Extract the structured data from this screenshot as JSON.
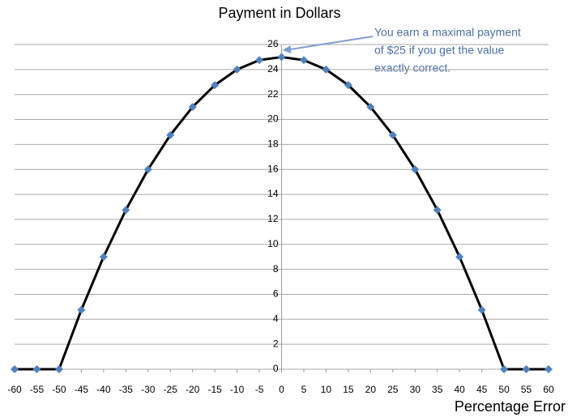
{
  "chart_data": {
    "type": "line",
    "title": "Payment in Dollars",
    "x_label": "Percentage Error",
    "annotation": [
      "You earn a maximal payment",
      "of $25 if you get the value",
      "exactly correct."
    ],
    "x": [
      -60,
      -55,
      -50,
      -45,
      -40,
      -35,
      -30,
      -25,
      -20,
      -15,
      -10,
      -5,
      0,
      5,
      10,
      15,
      20,
      25,
      30,
      35,
      40,
      45,
      50,
      55,
      60
    ],
    "series": [
      {
        "name": "Payment",
        "color": "#000000",
        "marker_color": "#4f81bd",
        "values": [
          0,
          0,
          0,
          4.75,
          9,
          12.75,
          16,
          18.75,
          21,
          22.75,
          24,
          24.75,
          25,
          24.75,
          24,
          22.75,
          21,
          18.75,
          16,
          12.75,
          9,
          4.75,
          0,
          0,
          0
        ]
      }
    ],
    "xlim": [
      -60,
      60
    ],
    "xticks": [
      -60,
      -55,
      -50,
      -45,
      -40,
      -35,
      -30,
      -25,
      -20,
      -15,
      -10,
      -5,
      0,
      5,
      10,
      15,
      20,
      25,
      30,
      35,
      40,
      45,
      50,
      55,
      60
    ],
    "ylim": [
      0,
      26
    ],
    "yticks": [
      0,
      2,
      4,
      6,
      8,
      10,
      12,
      14,
      16,
      18,
      20,
      22,
      24,
      26
    ],
    "grid": true
  }
}
